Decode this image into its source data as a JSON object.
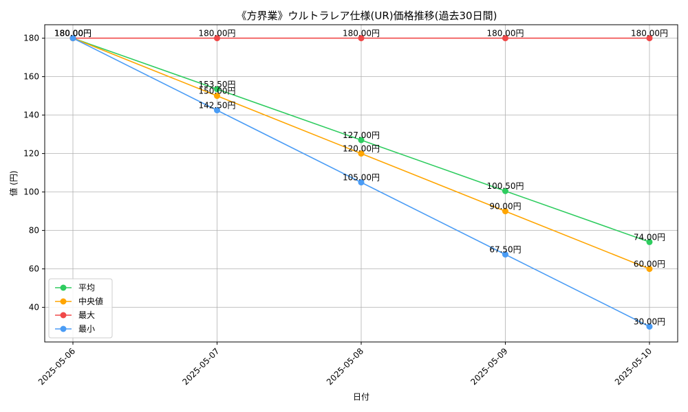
{
  "chart_data": {
    "type": "line",
    "title": "《方界業》ウルトラレア仕様(UR)価格推移(過去30日間)",
    "xlabel": "日付",
    "ylabel": "値 (円)",
    "categories": [
      "2025-05-06",
      "2025-05-07",
      "2025-05-08",
      "2025-05-09",
      "2025-05-10"
    ],
    "ylim": [
      22,
      187
    ],
    "yticks": [
      40,
      60,
      80,
      100,
      120,
      140,
      160,
      180
    ],
    "grid": true,
    "legend_position": "bottom-left",
    "unit_suffix": "円",
    "series": [
      {
        "name": "平均",
        "color": "#2ecc5f",
        "values": [
          180,
          153.5,
          127,
          100.5,
          74
        ]
      },
      {
        "name": "中央値",
        "color": "#ffa500",
        "values": [
          180,
          150,
          120,
          90,
          60
        ]
      },
      {
        "name": "最大",
        "color": "#f04848",
        "values": [
          180,
          180,
          180,
          180,
          180
        ]
      },
      {
        "name": "最小",
        "color": "#4a9cf5",
        "values": [
          180,
          142.5,
          105,
          67.5,
          30
        ]
      }
    ],
    "data_labels": [
      {
        "series": 0,
        "labels": [
          "180.00円",
          "153.50円",
          "127.00円",
          "100.50円",
          "74.00円"
        ]
      },
      {
        "series": 1,
        "labels": [
          "180.00円",
          "150.00円",
          "120.00円",
          "90.00円",
          "60.00円"
        ]
      },
      {
        "series": 2,
        "labels": [
          "180.00円",
          "180.00円",
          "180.00円",
          "180.00円",
          "180.00円"
        ]
      },
      {
        "series": 3,
        "labels": [
          "180.00円",
          "142.50円",
          "105.00円",
          "67.50円",
          "30.00円"
        ]
      }
    ]
  }
}
